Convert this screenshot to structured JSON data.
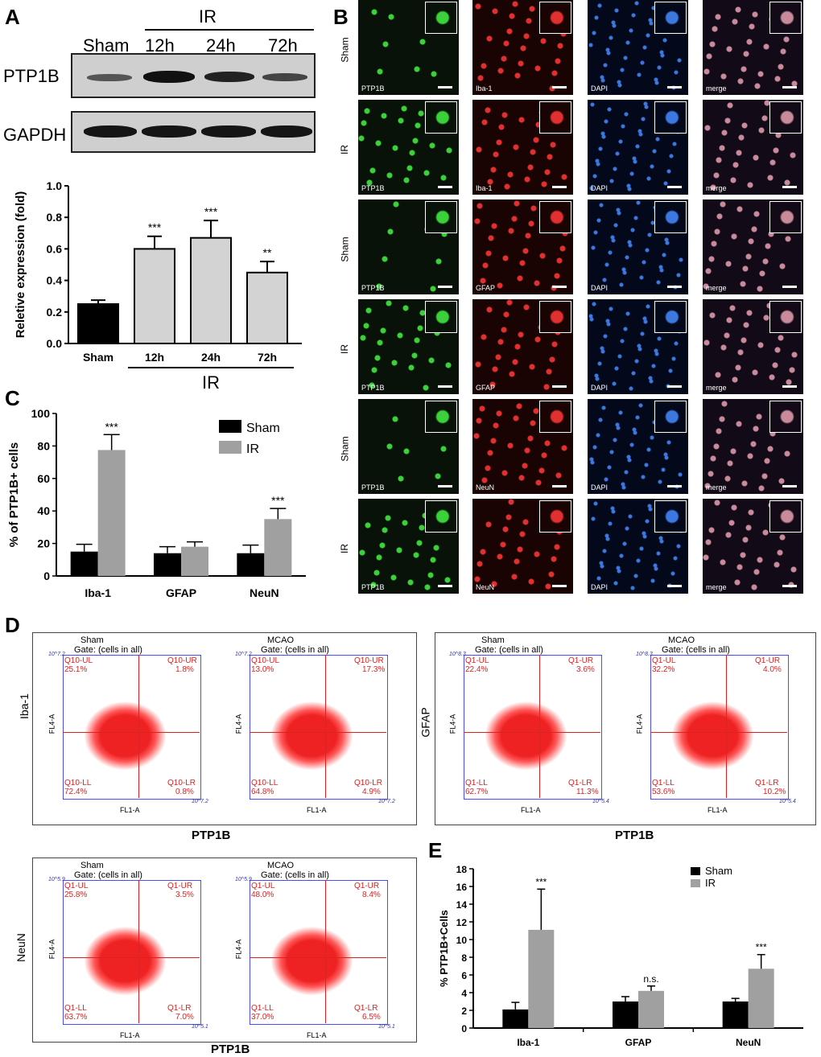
{
  "panel_labels": {
    "A": "A",
    "B": "B",
    "C": "C",
    "D": "D",
    "E": "E"
  },
  "western": {
    "group_label": "IR",
    "lanes": [
      "Sham",
      "12h",
      "24h",
      "72h"
    ],
    "rows": [
      "PTP1B",
      "GAPDH"
    ]
  },
  "micrographs": {
    "rows": [
      "Sham",
      "IR",
      "Sham",
      "IR",
      "Sham",
      "IR"
    ],
    "columns": [
      [
        "PTP1B",
        "Iba-1",
        "DAPI",
        "merge"
      ],
      [
        "PTP1B",
        "Iba-1",
        "DAPI",
        "merge"
      ],
      [
        "PTP1B",
        "GFAP",
        "DAPI",
        "merge"
      ],
      [
        "PTP1B",
        "GFAP",
        "DAPI",
        "merge"
      ],
      [
        "PTP1B",
        "NeuN",
        "DAPI",
        "merge"
      ],
      [
        "PTP1B",
        "NeuN",
        "DAPI",
        "merge"
      ]
    ]
  },
  "flow": {
    "iba1": {
      "side": "Iba-1",
      "xlabel": "PTP1B",
      "plots": [
        {
          "title": "Sham",
          "gate": "Gate: (cells in all)",
          "ul": "Q10-UL",
          "ul_v": "25.1%",
          "ur": "Q10-UR",
          "ur_v": "1.8%",
          "ll": "Q10-LL",
          "ll_v": "72.4%",
          "lr": "Q10-LR",
          "lr_v": "0.8%",
          "xa": "FL1-A",
          "ya": "FL4-A",
          "top": "10^7.2",
          "right": "10^7.2"
        },
        {
          "title": "MCAO",
          "gate": "Gate: (cells in all)",
          "ul": "Q10-UL",
          "ul_v": "13.0%",
          "ur": "Q10-UR",
          "ur_v": "17.3%",
          "ll": "Q10-LL",
          "ll_v": "64.8%",
          "lr": "Q10-LR",
          "lr_v": "4.9%",
          "xa": "FL1-A",
          "ya": "FL4-A",
          "top": "10^7.2",
          "right": "10^7.2"
        }
      ]
    },
    "gfap": {
      "side": "GFAP",
      "xlabel": "PTP1B",
      "plots": [
        {
          "title": "Sham",
          "gate": "Gate: (cells in all)",
          "ul": "Q1-UL",
          "ul_v": "22.4%",
          "ur": "Q1-UR",
          "ur_v": "3.6%",
          "ll": "Q1-LL",
          "ll_v": "62.7%",
          "lr": "Q1-LR",
          "lr_v": "11.3%",
          "xa": "FL1-A",
          "ya": "FL4-A",
          "top": "10^8.3",
          "right": "10^5.4"
        },
        {
          "title": "MCAO",
          "gate": "Gate: (cells in all)",
          "ul": "Q1-UL",
          "ul_v": "32.2%",
          "ur": "Q1-UR",
          "ur_v": "4.0%",
          "ll": "Q1-LL",
          "ll_v": "53.6%",
          "lr": "Q1-LR",
          "lr_v": "10.2%",
          "xa": "FL1-A",
          "ya": "FL4-A",
          "top": "10^8.3",
          "right": "10^5.4"
        }
      ]
    },
    "neun": {
      "side": "NeuN",
      "xlabel": "PTP1B",
      "plots": [
        {
          "title": "Sham",
          "gate": "Gate: (cells in all)",
          "ul": "Q1-UL",
          "ul_v": "25.8%",
          "ur": "Q1-UR",
          "ur_v": "3.5%",
          "ll": "Q1-LL",
          "ll_v": "63.7%",
          "lr": "Q1-LR",
          "lr_v": "7.0%",
          "xa": "FL1-A",
          "ya": "FL4-A",
          "top": "10^5.9",
          "right": "10^5.1"
        },
        {
          "title": "MCAO",
          "gate": "Gate: (cells in all)",
          "ul": "Q1-UL",
          "ul_v": "48.0%",
          "ur": "Q1-UR",
          "ur_v": "8.4%",
          "ll": "Q1-LL",
          "ll_v": "37.0%",
          "lr": "Q1-LR",
          "lr_v": "6.5%",
          "xa": "FL1-A",
          "ya": "FL4-A",
          "top": "10^5.9",
          "right": "10^5.1"
        }
      ]
    }
  },
  "chart_data": [
    {
      "id": "A",
      "type": "bar",
      "categories": [
        "Sham",
        "12h",
        "24h",
        "72h"
      ],
      "values": [
        0.25,
        0.6,
        0.67,
        0.45
      ],
      "errors": [
        0.025,
        0.08,
        0.11,
        0.07
      ],
      "significance": [
        "",
        "***",
        "***",
        "**"
      ],
      "ylabel": "Reletive expression (fold)",
      "group_label": "IR",
      "ylim": [
        0,
        1.0
      ],
      "yticks": [
        "0.0",
        "0.2",
        "0.4",
        "0.6",
        "0.8",
        "1.0"
      ],
      "colors": [
        "#000000",
        "#d3d3d3",
        "#d3d3d3",
        "#d3d3d3"
      ]
    },
    {
      "id": "C",
      "type": "bar",
      "categories": [
        "Iba-1",
        "GFAP",
        "NeuN"
      ],
      "series": [
        {
          "name": "Sham",
          "values": [
            15,
            14,
            14
          ],
          "errors": [
            4.5,
            4,
            5
          ],
          "color": "#000000"
        },
        {
          "name": "IR",
          "values": [
            77.5,
            18,
            35
          ],
          "errors": [
            9.5,
            3,
            6.5
          ],
          "color": "#a0a0a0"
        }
      ],
      "significance": [
        "***",
        "",
        "***"
      ],
      "ylabel": "% of PTP1B+ cells",
      "ylim": [
        0,
        100
      ],
      "yticks": [
        "0",
        "20",
        "40",
        "60",
        "80",
        "100"
      ],
      "legend": "top-right"
    },
    {
      "id": "E",
      "type": "bar",
      "categories": [
        "Iba-1",
        "GFAP",
        "NeuN"
      ],
      "series": [
        {
          "name": "Sham",
          "values": [
            2.1,
            3.0,
            3.0
          ],
          "errors": [
            0.8,
            0.55,
            0.35
          ],
          "color": "#000000"
        },
        {
          "name": "IR",
          "values": [
            11.1,
            4.2,
            6.7
          ],
          "errors": [
            4.6,
            0.55,
            1.6
          ],
          "color": "#a0a0a0"
        }
      ],
      "significance": [
        "***",
        "n.s.",
        "***"
      ],
      "ylabel": "% PTP1B+Cells",
      "ylim": [
        0,
        18
      ],
      "yticks": [
        "0",
        "2",
        "4",
        "6",
        "8",
        "10",
        "12",
        "14",
        "16",
        "18"
      ],
      "legend": "top-right"
    }
  ]
}
